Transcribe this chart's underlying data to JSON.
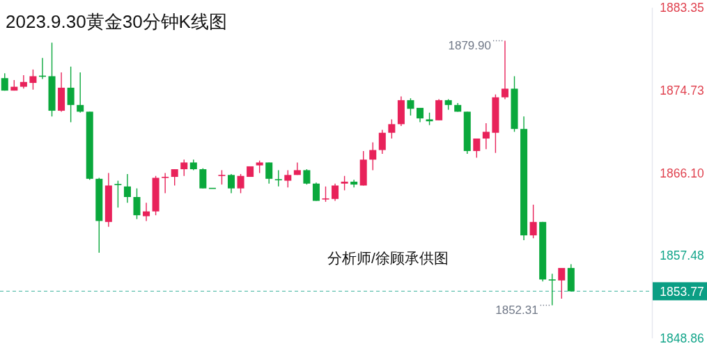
{
  "chart_data": {
    "type": "candlestick",
    "title": "2023.9.30黄金30分钟K线图",
    "annotations": [
      "分析师/徐顾承供图",
      "1879.90",
      "1852.31"
    ],
    "categories": [
      null,
      null,
      null,
      null,
      null,
      null,
      null,
      null,
      null,
      null,
      null,
      null,
      null,
      null,
      null,
      null,
      null,
      null,
      null,
      null,
      null,
      null,
      null,
      null,
      null,
      null,
      null,
      null,
      null,
      null,
      null,
      null,
      null,
      null,
      null,
      null,
      null,
      null,
      null,
      null,
      null,
      null,
      null,
      null,
      null,
      null,
      null,
      null,
      null,
      null,
      null,
      null,
      null,
      null,
      null,
      null,
      null,
      null,
      null,
      null,
      null,
      null,
      null,
      null,
      null,
      null,
      null,
      null,
      null
    ],
    "ohlc": [
      [
        1876.0,
        1876.5,
        1874.7,
        1874.7
      ],
      [
        1874.7,
        1875.8,
        1874.7,
        1875.1
      ],
      [
        1875.1,
        1876.3,
        1874.9,
        1875.6
      ],
      [
        1875.5,
        1876.9,
        1874.8,
        1876.2
      ],
      [
        1876.2,
        1878.1,
        1875.9,
        1876.2
      ],
      [
        1876.2,
        1879.7,
        1872.0,
        1872.6
      ],
      [
        1872.6,
        1876.6,
        1872.5,
        1875.0
      ],
      [
        1875.0,
        1877.2,
        1871.4,
        1873.2
      ],
      [
        1873.2,
        1876.6,
        1872.4,
        1872.5
      ],
      [
        1872.5,
        1872.5,
        1865.4,
        1865.5
      ],
      [
        1865.5,
        1865.6,
        1857.8,
        1861.1
      ],
      [
        1861.0,
        1866.1,
        1860.5,
        1864.8
      ],
      [
        1864.9,
        1865.3,
        1862.5,
        1864.9
      ],
      [
        1864.7,
        1866.0,
        1863.0,
        1863.6
      ],
      [
        1863.6,
        1864.5,
        1861.3,
        1861.7
      ],
      [
        1861.6,
        1863.0,
        1861.1,
        1862.1
      ],
      [
        1862.1,
        1865.8,
        1861.7,
        1865.6
      ],
      [
        1865.6,
        1866.1,
        1864.0,
        1865.7
      ],
      [
        1865.7,
        1866.5,
        1864.8,
        1866.5
      ],
      [
        1866.5,
        1867.5,
        1865.8,
        1867.2
      ],
      [
        1867.2,
        1867.5,
        1866.4,
        1866.5
      ],
      [
        1866.5,
        1866.6,
        1864.5,
        1864.5
      ],
      [
        1864.5,
        1864.5,
        1864.5,
        1864.5
      ],
      [
        1865.8,
        1866.4,
        1864.9,
        1865.9
      ],
      [
        1865.9,
        1866.0,
        1864.0,
        1864.5
      ],
      [
        1864.5,
        1866.0,
        1864.0,
        1865.8
      ],
      [
        1865.7,
        1866.8,
        1865.7,
        1866.8
      ],
      [
        1866.9,
        1867.4,
        1866.1,
        1867.2
      ],
      [
        1867.2,
        1867.2,
        1865.0,
        1865.5
      ],
      [
        1865.4,
        1866.4,
        1864.7,
        1865.4
      ],
      [
        1865.3,
        1866.4,
        1864.6,
        1865.9
      ],
      [
        1865.9,
        1867.2,
        1865.9,
        1866.4
      ],
      [
        1866.4,
        1866.5,
        1864.9,
        1865.0
      ],
      [
        1865.0,
        1865.1,
        1863.2,
        1863.2
      ],
      [
        1863.4,
        1864.7,
        1863.1,
        1863.4
      ],
      [
        1863.4,
        1865.0,
        1863.2,
        1864.8
      ],
      [
        1865.0,
        1865.8,
        1864.3,
        1865.2
      ],
      [
        1865.2,
        1865.4,
        1864.6,
        1864.9
      ],
      [
        1864.8,
        1868.4,
        1864.8,
        1867.5
      ],
      [
        1867.5,
        1869.3,
        1866.4,
        1868.5
      ],
      [
        1868.5,
        1870.6,
        1868.1,
        1870.3
      ],
      [
        1870.3,
        1871.7,
        1869.7,
        1871.2
      ],
      [
        1871.2,
        1874.1,
        1871.0,
        1873.7
      ],
      [
        1873.7,
        1873.9,
        1872.1,
        1872.8
      ],
      [
        1872.9,
        1872.9,
        1871.4,
        1871.8
      ],
      [
        1871.7,
        1872.4,
        1871.1,
        1871.5
      ],
      [
        1871.6,
        1873.8,
        1871.6,
        1873.7
      ],
      [
        1873.7,
        1873.8,
        1872.7,
        1873.2
      ],
      [
        1873.2,
        1873.4,
        1872.5,
        1872.5
      ],
      [
        1872.5,
        1872.5,
        1868.1,
        1868.4
      ],
      [
        1868.4,
        1869.7,
        1867.7,
        1869.7
      ],
      [
        1869.7,
        1871.3,
        1868.6,
        1870.4
      ],
      [
        1870.3,
        1874.3,
        1868.2,
        1874.0
      ],
      [
        1874.0,
        1879.9,
        1873.8,
        1874.9
      ],
      [
        1874.9,
        1876.2,
        1870.4,
        1870.7
      ],
      [
        1870.7,
        1872.0,
        1859.1,
        1859.6
      ],
      [
        1859.6,
        1862.8,
        1859.3,
        1861.0
      ],
      [
        1861.0,
        1861.0,
        1854.8,
        1855.0
      ],
      [
        1855.0,
        1855.6,
        1852.31,
        1854.9
      ],
      [
        1854.9,
        1856.2,
        1853.0,
        1856.2
      ],
      [
        1856.2,
        1856.6,
        1853.77,
        1853.77
      ],
      null,
      null,
      null,
      null,
      null,
      null,
      null,
      null
    ],
    "colors": [
      "#0aa83c",
      "#e8225a",
      "#e8225a",
      "#e8225a",
      "#0aa83c",
      "#0aa83c",
      "#e8225a",
      "#0aa83c",
      "#0aa83c",
      "#0aa83c",
      "#0aa83c",
      "#e8225a",
      "#0aa83c",
      "#0aa83c",
      "#0aa83c",
      "#e8225a",
      "#e8225a",
      "#e8225a",
      "#e8225a",
      "#e8225a",
      "#0aa83c",
      "#0aa83c",
      "#0aa83c",
      "#e8225a",
      "#0aa83c",
      "#e8225a",
      "#e8225a",
      "#e8225a",
      "#0aa83c",
      "#0aa83c",
      "#e8225a",
      "#e8225a",
      "#0aa83c",
      "#0aa83c",
      "#e8225a",
      "#e8225a",
      "#e8225a",
      "#0aa83c",
      "#e8225a",
      "#e8225a",
      "#e8225a",
      "#e8225a",
      "#e8225a",
      "#0aa83c",
      "#0aa83c",
      "#0aa83c",
      "#e8225a",
      "#0aa83c",
      "#0aa83c",
      "#0aa83c",
      "#e8225a",
      "#e8225a",
      "#e8225a",
      "#e8225a",
      "#0aa83c",
      "#0aa83c",
      "#e8225a",
      "#0aa83c",
      "#0aa83c",
      "#e8225a",
      "#0aa83c",
      null,
      null,
      null,
      null,
      null,
      null,
      null,
      null
    ],
    "ylim": [
      1848.86,
      1883.35
    ],
    "yticks": [
      1848.86,
      1857.48,
      {
        "value": 1866.1,
        "label": "1866.10"
      },
      1874.73,
      1883.35
    ],
    "tick_labels": "y",
    "ref_lines": [
      {
        "axis": "y",
        "value": 1853.77,
        "label": "1853.77",
        "color": "#0b9e84",
        "line_style": "dashed"
      }
    ]
  }
}
